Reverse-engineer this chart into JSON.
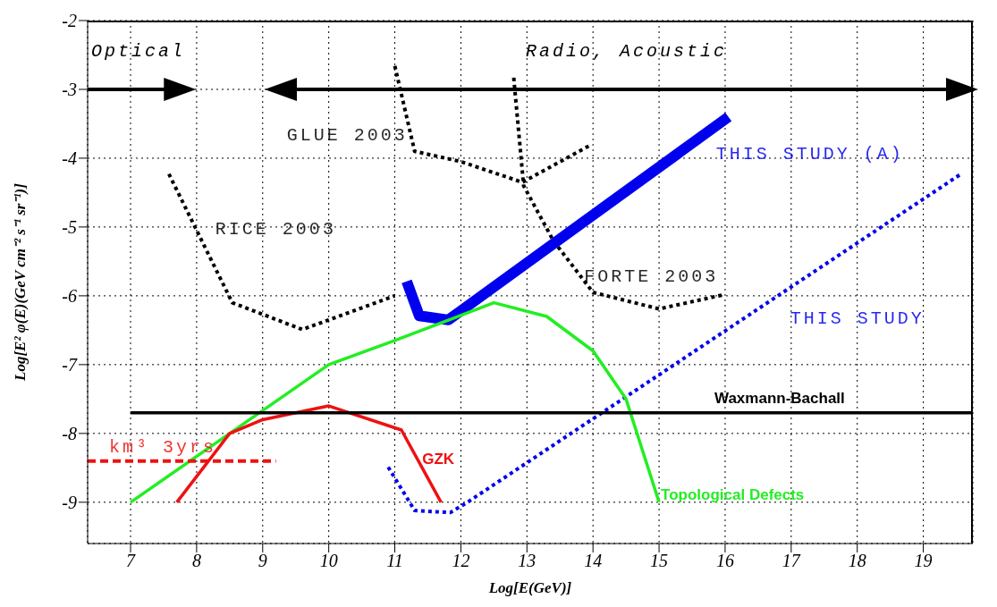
{
  "chart_data": {
    "type": "line",
    "xlabel": "Log[E(GeV)]",
    "ylabel": "Log[E² φ(E)(GeV cm⁻² s⁻¹ sr⁻¹)]",
    "xlim": [
      6.35,
      19.75
    ],
    "xticks": [
      7,
      8,
      9,
      10,
      11,
      12,
      13,
      14,
      15,
      16,
      17,
      18,
      19
    ],
    "ylim": [
      -9.6,
      -2
    ],
    "yticks": [
      -9,
      -8,
      -7,
      -6,
      -5,
      -4,
      -3,
      -2
    ],
    "grid": true,
    "legend": false,
    "marker": "none",
    "series": [
      {
        "name": "RICE 2003",
        "color": "#000000",
        "line_style": "dotted",
        "x": [
          7.58,
          8.54,
          9.6,
          10,
          11
        ],
        "values": [
          -4.23,
          -6.1,
          -6.49,
          -6.35,
          -6.0
        ]
      },
      {
        "name": "GLUE 2003",
        "color": "#000000",
        "line_style": "dotted",
        "x": [
          11,
          11.3,
          12,
          12.93,
          13.98
        ],
        "values": [
          -2.66,
          -3.9,
          -4.05,
          -4.35,
          -3.8
        ]
      },
      {
        "name": "FORTE 2003",
        "color": "#000000",
        "line_style": "dotted",
        "x": [
          12.8,
          12.95,
          13.4,
          14,
          15,
          16
        ],
        "values": [
          -2.83,
          -4.4,
          -5.2,
          -5.95,
          -6.19,
          -5.98
        ]
      },
      {
        "name": "THIS STUDY (A)",
        "color": "#0000ee",
        "line_style": "solid",
        "x": [
          11.18,
          11.37,
          11.81,
          16.05
        ],
        "values": [
          -5.79,
          -6.29,
          -6.35,
          -3.4
        ]
      },
      {
        "name": "THIS STUDY",
        "color": "#0000ee",
        "line_style": "dotted",
        "x": [
          10.9,
          11.3,
          11.84,
          12.1,
          19.57
        ],
        "values": [
          -8.49,
          -9.12,
          -9.15,
          -9.0,
          -4.23
        ]
      },
      {
        "name": "Topological Defects",
        "color": "#22ee22",
        "line_style": "solid",
        "x": [
          7,
          8.5,
          10,
          11,
          12.5,
          13.3,
          14,
          14.5,
          15
        ],
        "values": [
          -9,
          -8,
          -7,
          -6.65,
          -6.1,
          -6.3,
          -6.8,
          -7.5,
          -9
        ]
      },
      {
        "name": "GZK",
        "color": "#ee1111",
        "line_style": "solid",
        "x": [
          7.7,
          8.5,
          9,
          10,
          11.1,
          11.7
        ],
        "values": [
          -9,
          -8,
          -7.8,
          -7.6,
          -7.95,
          -9
        ]
      },
      {
        "name": "Waxmann-Bachall",
        "color": "#000000",
        "line_style": "solid",
        "x": [
          7,
          19.75
        ],
        "values": [
          -7.7,
          -7.7
        ]
      },
      {
        "name": "km³ 3yrs",
        "color": "#ee1111",
        "line_style": "dashed",
        "x": [
          6.35,
          9.2
        ],
        "values": [
          -8.4,
          -8.4
        ]
      }
    ],
    "annotations": [
      "Optical",
      "Radio, Acoustic"
    ]
  }
}
